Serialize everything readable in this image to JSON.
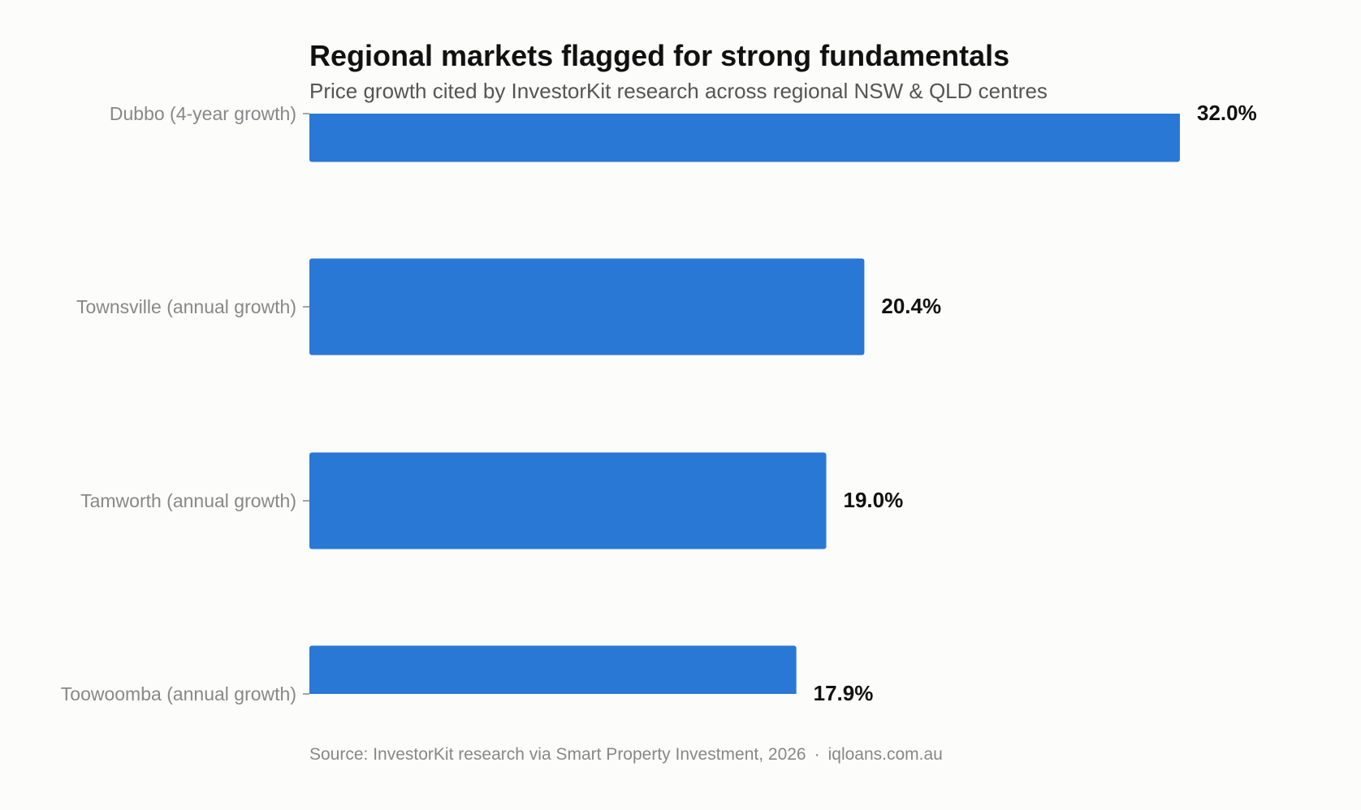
{
  "chart_data": {
    "type": "bar",
    "orientation": "horizontal",
    "title": "Regional markets flagged for strong fundamentals",
    "subtitle": "Price growth cited by InvestorKit research across regional NSW & QLD centres",
    "categories": [
      "Dubbo (4-year growth)",
      "Townsville (annual growth)",
      "Tamworth (annual growth)",
      "Toowoomba (annual growth)"
    ],
    "values": [
      32.0,
      20.4,
      19.0,
      17.9
    ],
    "value_labels": [
      "32.0%",
      "20.4%",
      "19.0%",
      "17.9%"
    ],
    "value_unit": "%",
    "xlim": [
      0,
      32.0
    ],
    "grid": false,
    "legend": "none",
    "bar_color": "#2a78d6",
    "source": "Source: InvestorKit research via Smart Property Investment, 2026",
    "separator": "·",
    "site": "iqloans.com.au"
  }
}
